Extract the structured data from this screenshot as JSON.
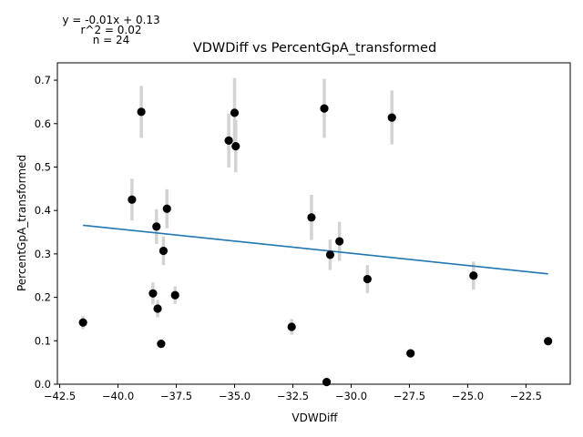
{
  "chart_data": {
    "type": "scatter",
    "title": "VDWDiff vs PercentGpA_transformed",
    "xlabel": "VDWDiff",
    "ylabel": "PercentGpA_transformed",
    "xlim": [
      -42.6,
      -20.6
    ],
    "ylim": [
      0.0,
      0.74
    ],
    "xticks": [
      -42.5,
      -40.0,
      -37.5,
      -35.0,
      -32.5,
      -30.0,
      -27.5,
      -25.0,
      -22.5
    ],
    "xtick_labels": [
      "−42.5",
      "−40.0",
      "−37.5",
      "−35.0",
      "−32.5",
      "−30.0",
      "−27.5",
      "−25.0",
      "−22.5"
    ],
    "yticks": [
      0.0,
      0.1,
      0.2,
      0.3,
      0.4,
      0.5,
      0.6,
      0.7
    ],
    "ytick_labels": [
      "0.0",
      "0.1",
      "0.2",
      "0.3",
      "0.4",
      "0.5",
      "0.6",
      "0.7"
    ],
    "annotations": [
      "y = -0.01x + 0.13",
      "r^2 = 0.02",
      "n = 24"
    ],
    "grid": false,
    "points": [
      {
        "x": -41.5,
        "y": 0.142,
        "err": 0.015
      },
      {
        "x": -39.4,
        "y": 0.425,
        "err": 0.048
      },
      {
        "x": -39.0,
        "y": 0.627,
        "err": 0.06
      },
      {
        "x": -38.5,
        "y": 0.209,
        "err": 0.025
      },
      {
        "x": -38.35,
        "y": 0.363,
        "err": 0.04
      },
      {
        "x": -38.3,
        "y": 0.174,
        "err": 0.02
      },
      {
        "x": -38.15,
        "y": 0.093,
        "err": 0.01
      },
      {
        "x": -38.05,
        "y": 0.307,
        "err": 0.033
      },
      {
        "x": -37.9,
        "y": 0.404,
        "err": 0.045
      },
      {
        "x": -37.55,
        "y": 0.205,
        "err": 0.02
      },
      {
        "x": -35.25,
        "y": 0.561,
        "err": 0.062
      },
      {
        "x": -35.0,
        "y": 0.625,
        "err": 0.08
      },
      {
        "x": -34.95,
        "y": 0.548,
        "err": 0.06
      },
      {
        "x": -32.55,
        "y": 0.132,
        "err": 0.018
      },
      {
        "x": -31.7,
        "y": 0.384,
        "err": 0.052
      },
      {
        "x": -31.15,
        "y": 0.635,
        "err": 0.068
      },
      {
        "x": -31.05,
        "y": 0.005,
        "err": 0.0
      },
      {
        "x": -30.9,
        "y": 0.298,
        "err": 0.035
      },
      {
        "x": -30.5,
        "y": 0.329,
        "err": 0.045
      },
      {
        "x": -29.3,
        "y": 0.242,
        "err": 0.032
      },
      {
        "x": -28.25,
        "y": 0.614,
        "err": 0.062
      },
      {
        "x": -27.45,
        "y": 0.071,
        "err": 0.0
      },
      {
        "x": -24.75,
        "y": 0.25,
        "err": 0.032
      },
      {
        "x": -21.55,
        "y": 0.099,
        "err": 0.0
      }
    ],
    "fit_line": {
      "x": [
        -41.5,
        -21.55
      ],
      "y": [
        0.366,
        0.254
      ]
    },
    "colors": {
      "points": "#000000",
      "errorbars": "#d3d3d3",
      "fit": "#1f77b4"
    }
  }
}
